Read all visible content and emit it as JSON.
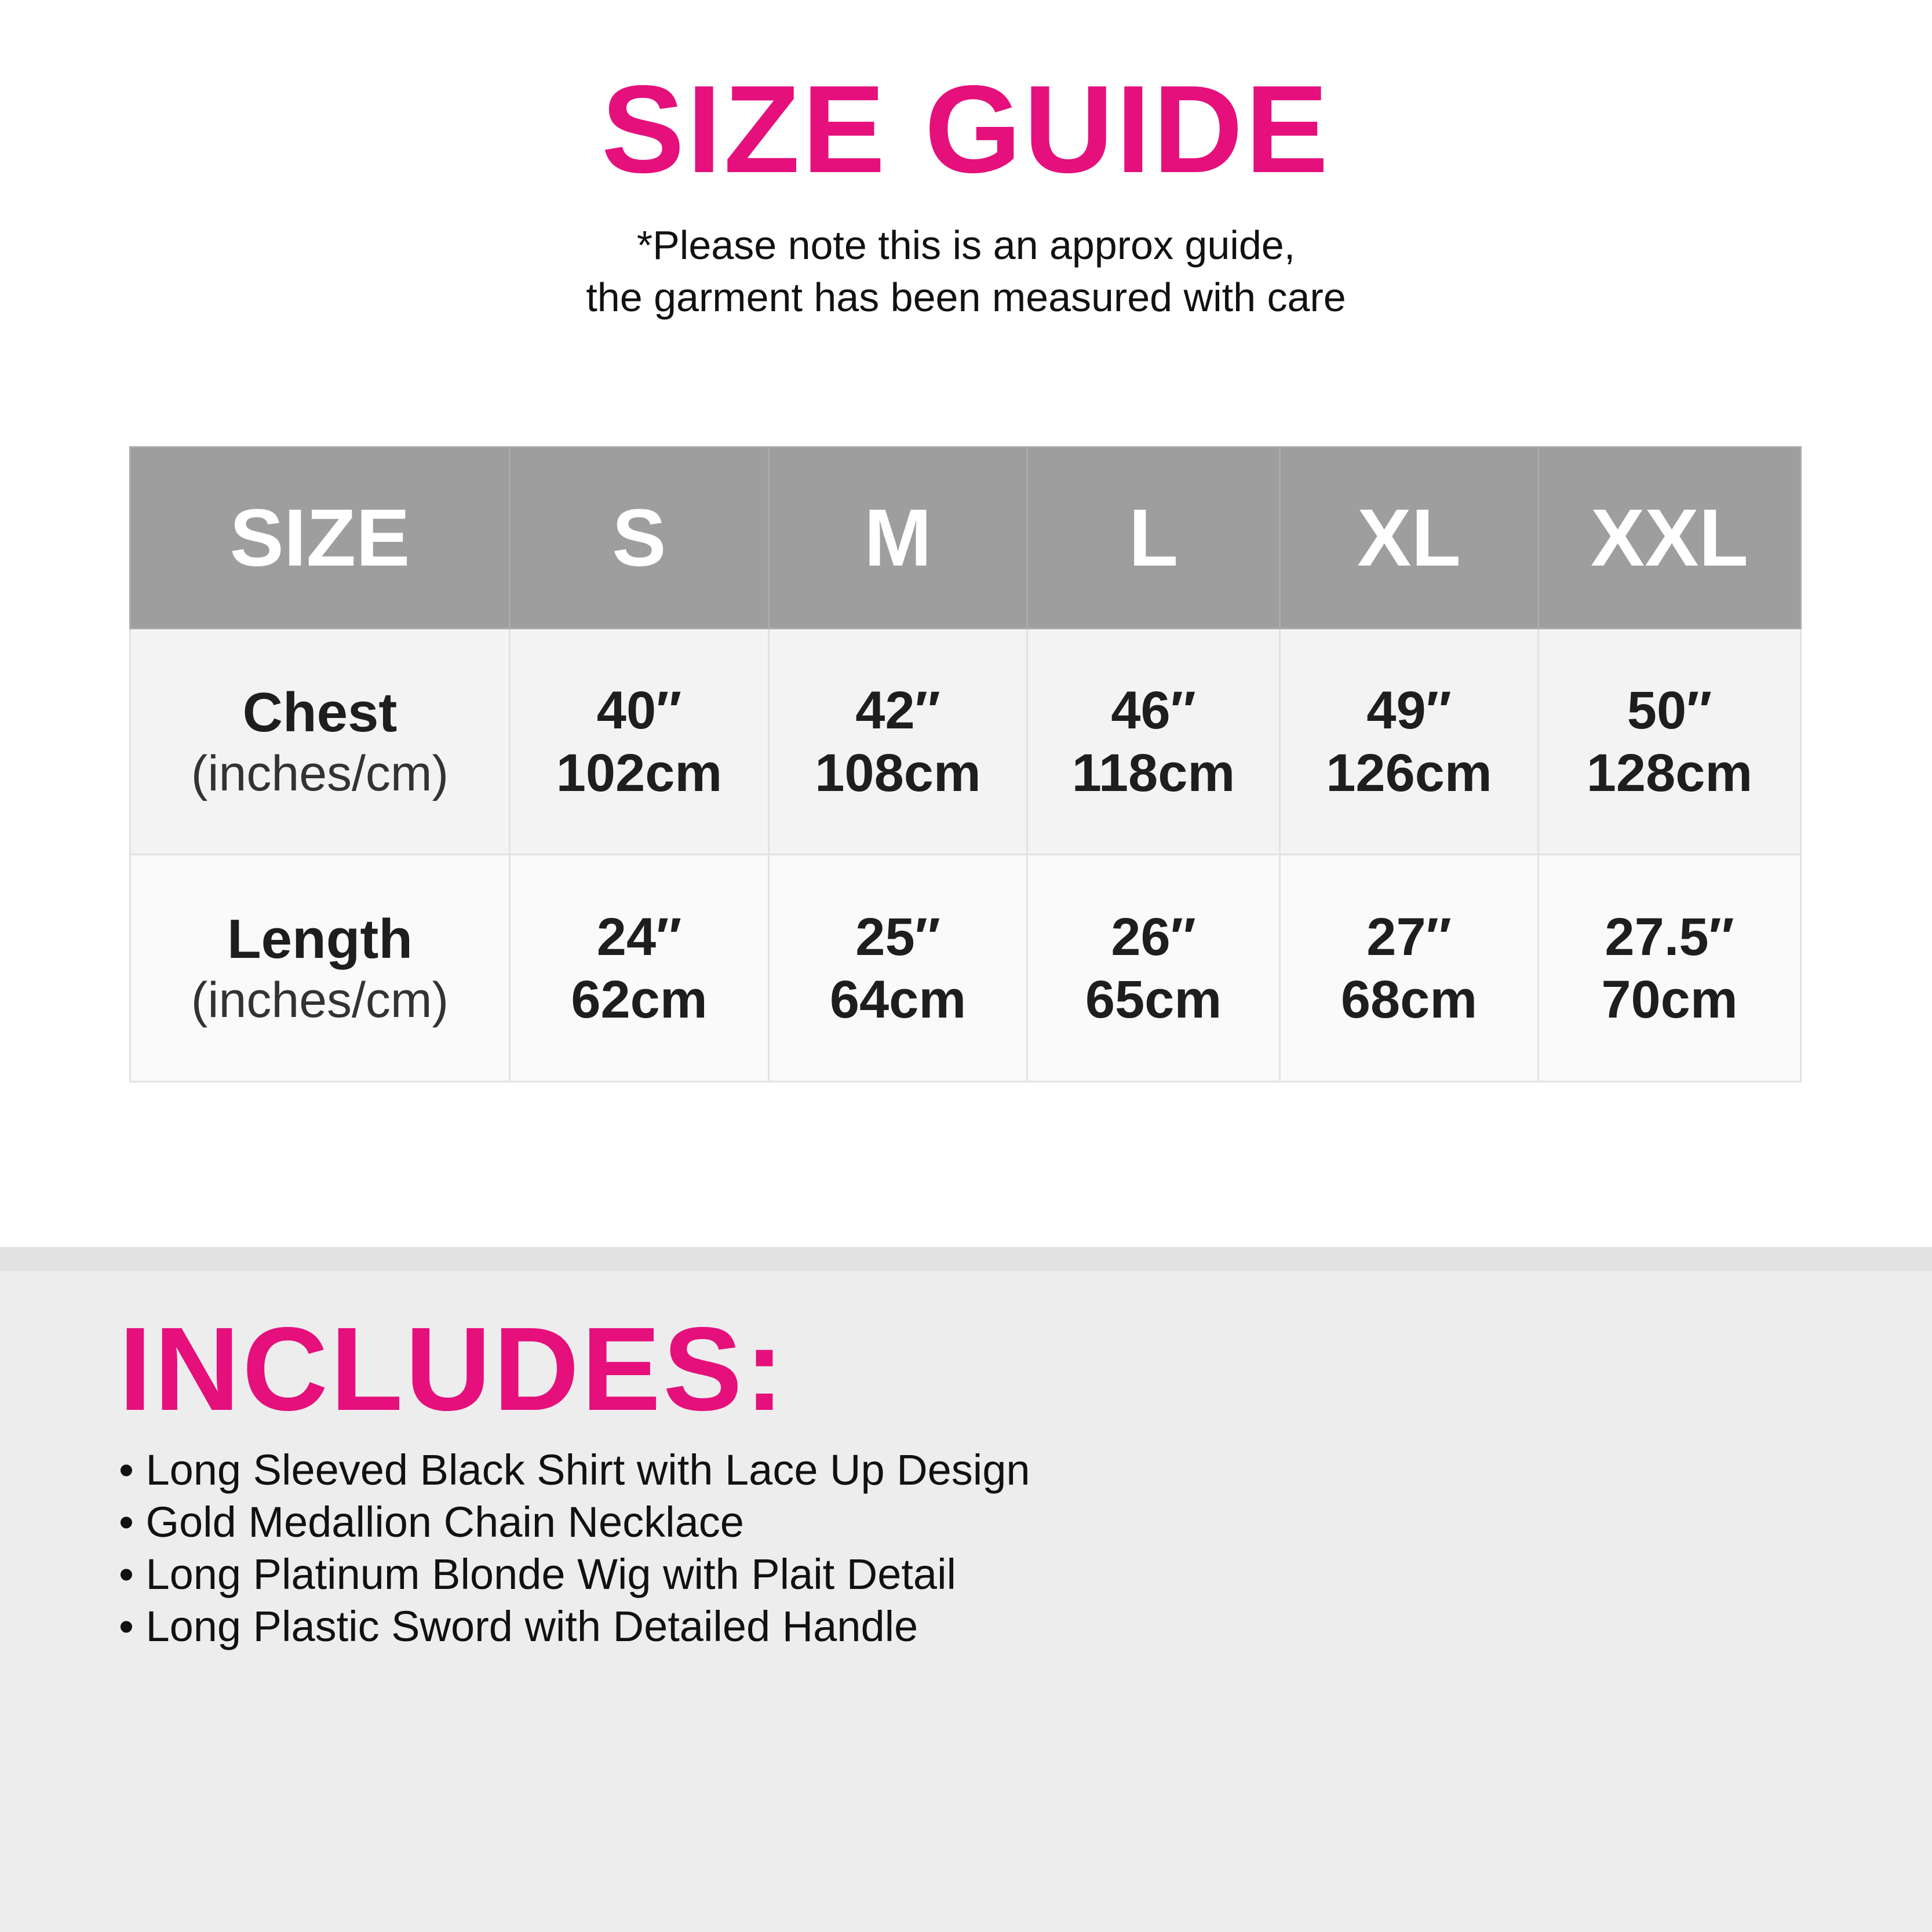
{
  "title": "SIZE GUIDE",
  "note": [
    "*Please note this is an approx guide,",
    "the garment has been measured with care"
  ],
  "table": {
    "headers": [
      "SIZE",
      "S",
      "M",
      "L",
      "XL",
      "XXL"
    ],
    "rows": [
      {
        "label": "Chest",
        "unit": "(inches/cm)",
        "values": [
          [
            "40″",
            "102cm"
          ],
          [
            "42″",
            "108cm"
          ],
          [
            "46″",
            "118cm"
          ],
          [
            "49″",
            "126cm"
          ],
          [
            "50″",
            "128cm"
          ]
        ]
      },
      {
        "label": "Length",
        "unit": "(inches/cm)",
        "values": [
          [
            "24″",
            "62cm"
          ],
          [
            "25″",
            "64cm"
          ],
          [
            "26″",
            "65cm"
          ],
          [
            "27″",
            "68cm"
          ],
          [
            "27.5″",
            "70cm"
          ]
        ]
      }
    ]
  },
  "includes": {
    "title": "INCLUDES:",
    "items": [
      "Long Sleeved Black Shirt with Lace Up Design",
      "Gold Medallion Chain Necklace",
      "Long Platinum Blonde Wig with Plait Detail",
      "Long Plastic Sword with Detailed Handle"
    ]
  },
  "colors": {
    "accent": "#e5107c",
    "header_bg": "#9e9e9e",
    "section_bg": "#ededed"
  }
}
